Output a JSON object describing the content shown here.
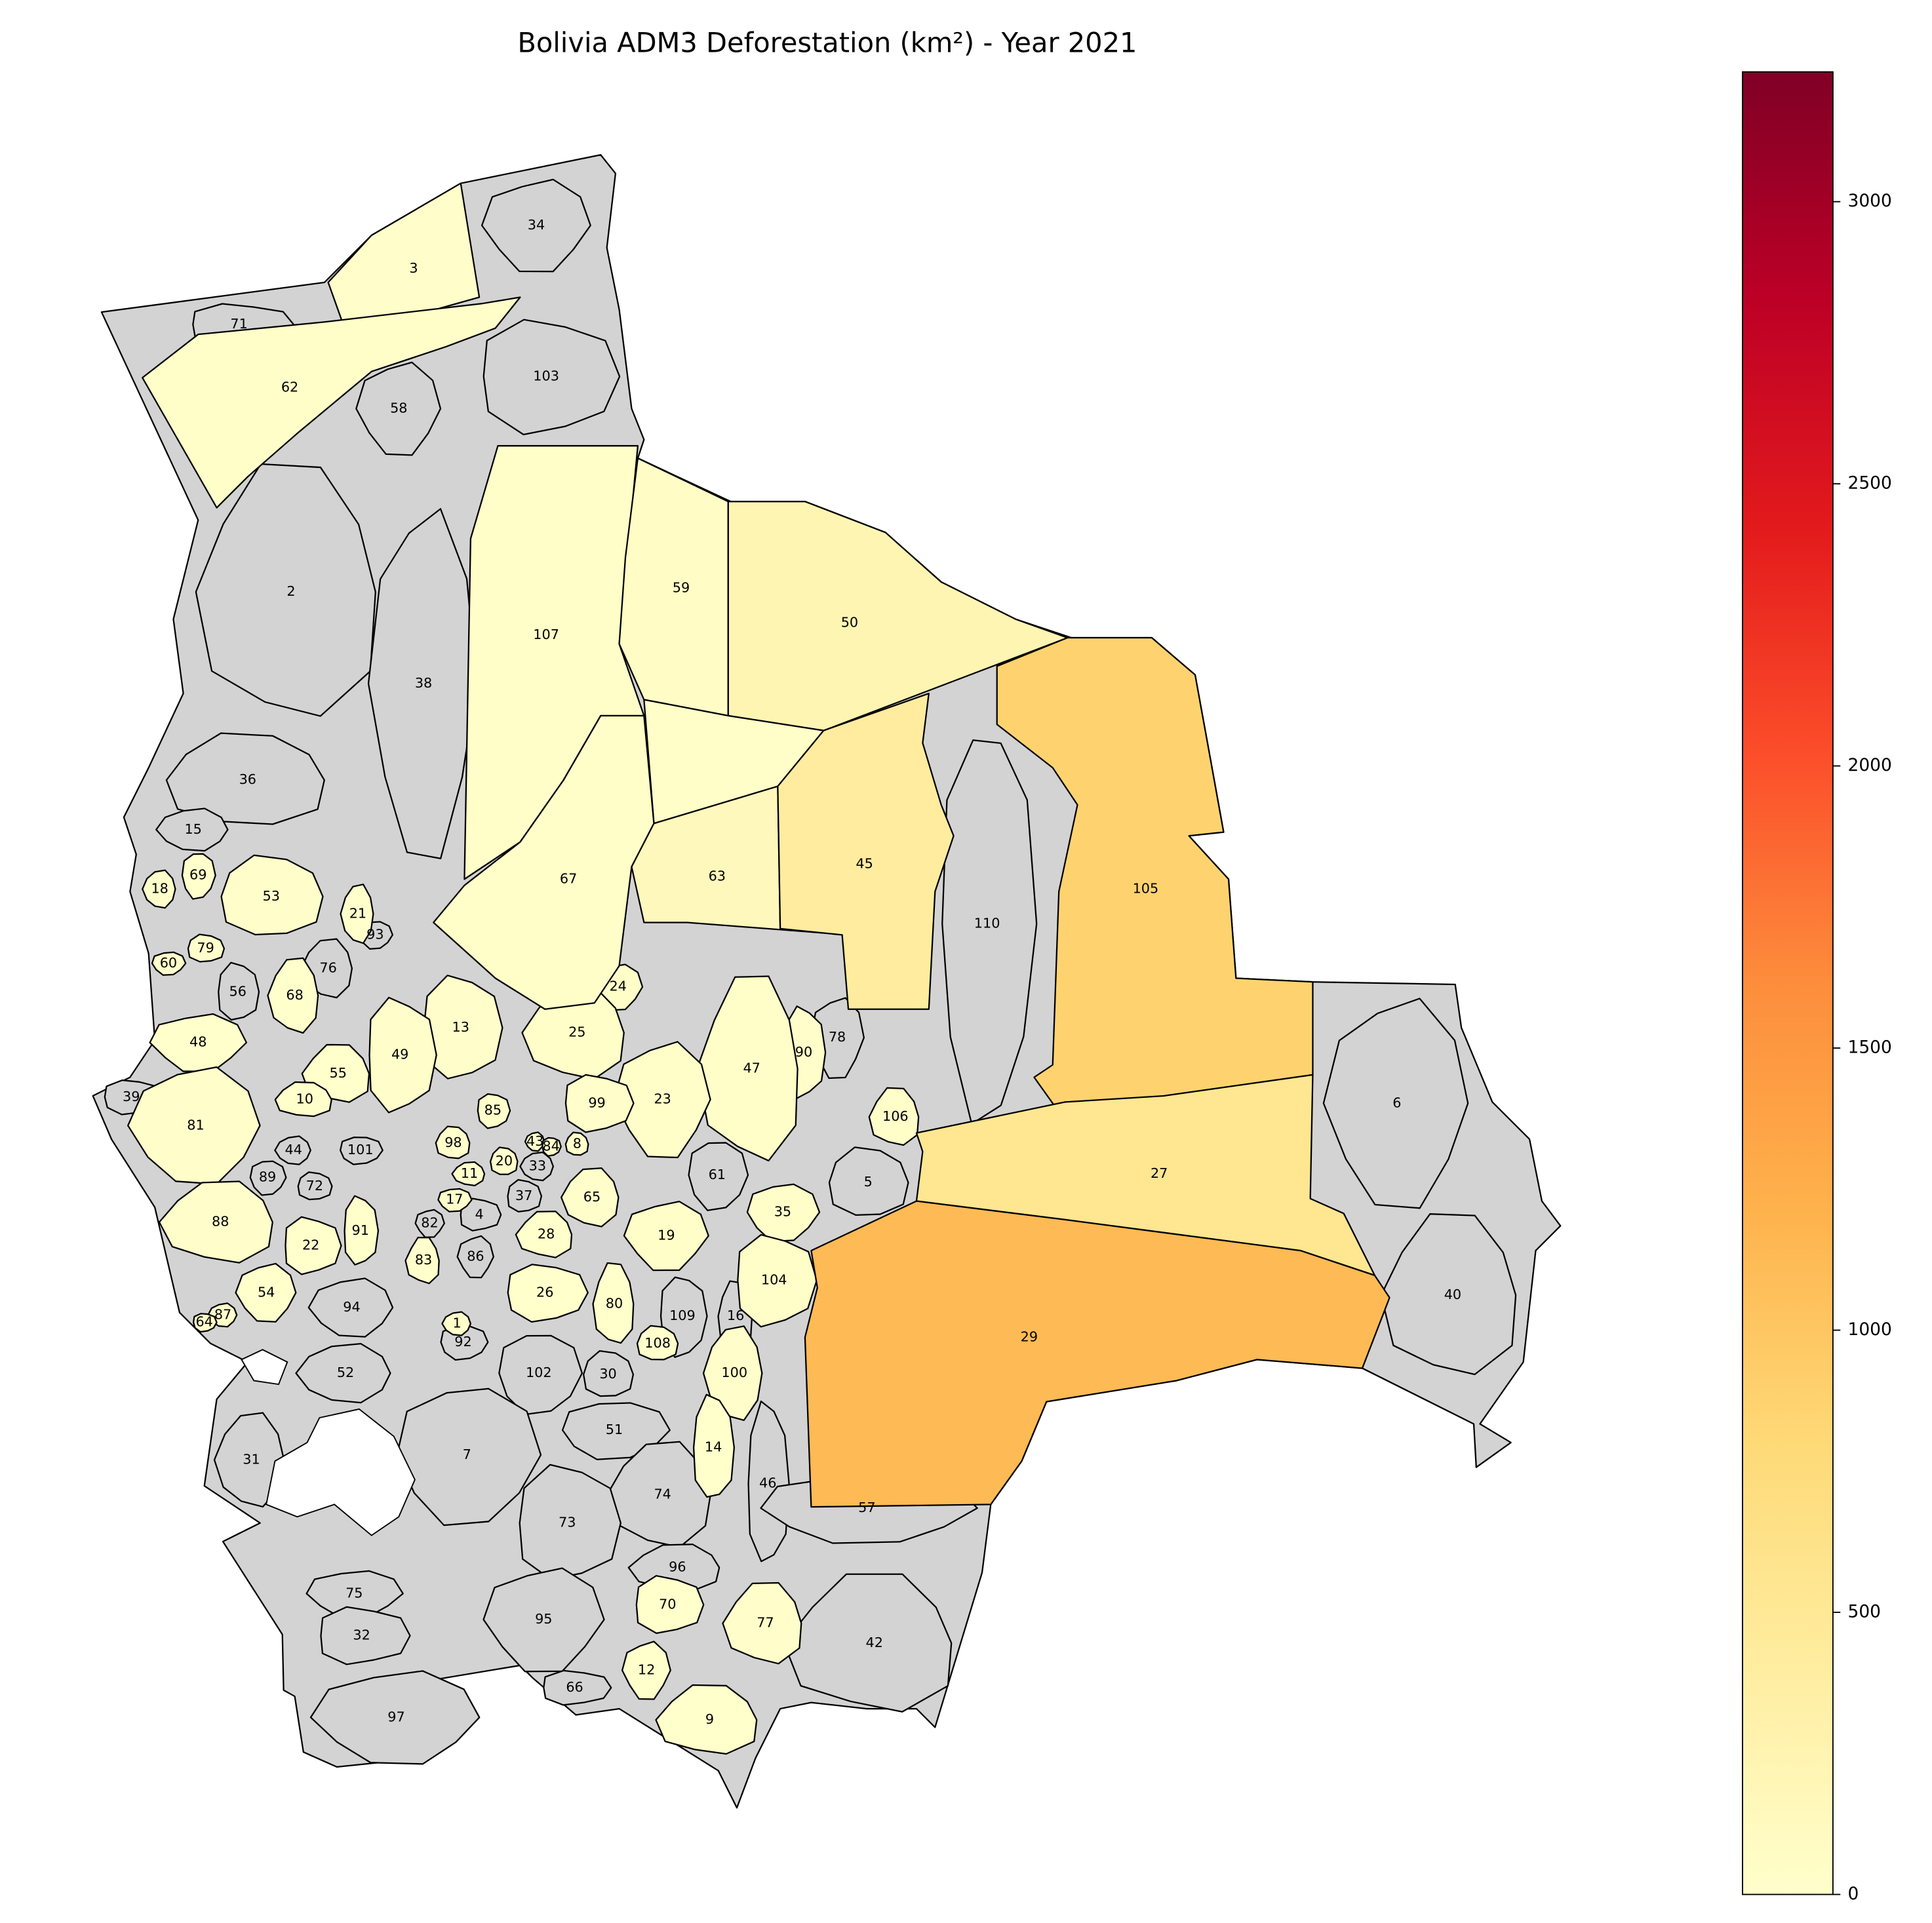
{
  "title": "Bolivia ADM3 Deforestation (km²) - Year 2021",
  "map": {
    "type": "choropleth",
    "colormap": "YlOrRd",
    "missing_color": "#d3d3d3",
    "regions": [
      {
        "label": "3",
        "value": 20
      },
      {
        "label": "34",
        "value": null
      },
      {
        "label": "71",
        "value": null
      },
      {
        "label": "62",
        "value": 30
      },
      {
        "label": "58",
        "value": null
      },
      {
        "label": "103",
        "value": null
      },
      {
        "label": "2",
        "value": null
      },
      {
        "label": "38",
        "value": null
      },
      {
        "label": "107",
        "value": 40
      },
      {
        "label": "59",
        "value": 60
      },
      {
        "label": "50",
        "value": 230
      },
      {
        "label": null,
        "value": 30
      },
      {
        "label": "36",
        "value": null
      },
      {
        "label": "15",
        "value": null
      },
      {
        "label": "67",
        "value": 40
      },
      {
        "label": "63",
        "value": 150
      },
      {
        "label": "45",
        "value": 420
      },
      {
        "label": "110",
        "value": null
      },
      {
        "label": "105",
        "value": 870
      },
      {
        "label": "18",
        "value": 10
      },
      {
        "label": "69",
        "value": 10
      },
      {
        "label": "53",
        "value": 20
      },
      {
        "label": "21",
        "value": 10
      },
      {
        "label": "93",
        "value": null
      },
      {
        "label": "79",
        "value": 5
      },
      {
        "label": "76",
        "value": null
      },
      {
        "label": "60",
        "value": 5
      },
      {
        "label": "56",
        "value": null
      },
      {
        "label": "68",
        "value": 10
      },
      {
        "label": "24",
        "value": 30
      },
      {
        "label": "13",
        "value": 20
      },
      {
        "label": "25",
        "value": 30
      },
      {
        "label": "78",
        "value": null
      },
      {
        "label": "90",
        "value": 20
      },
      {
        "label": "47",
        "value": 30
      },
      {
        "label": "48",
        "value": 10
      },
      {
        "label": "49",
        "value": 20
      },
      {
        "label": "55",
        "value": 10
      },
      {
        "label": "23",
        "value": 40
      },
      {
        "label": "99",
        "value": 20
      },
      {
        "label": "106",
        "value": 40
      },
      {
        "label": "6",
        "value": null
      },
      {
        "label": "39",
        "value": null
      },
      {
        "label": "10",
        "value": 10
      },
      {
        "label": "81",
        "value": 20
      },
      {
        "label": "85",
        "value": 10
      },
      {
        "label": "98",
        "value": 10
      },
      {
        "label": "43",
        "value": 10
      },
      {
        "label": "84",
        "value": 5
      },
      {
        "label": "8",
        "value": 10
      },
      {
        "label": "44",
        "value": null
      },
      {
        "label": "101",
        "value": null
      },
      {
        "label": "20",
        "value": 10
      },
      {
        "label": "33",
        "value": null
      },
      {
        "label": "61",
        "value": null
      },
      {
        "label": "5",
        "value": null
      },
      {
        "label": "27",
        "value": 550
      },
      {
        "label": "89",
        "value": null
      },
      {
        "label": "72",
        "value": null
      },
      {
        "label": "11",
        "value": 10
      },
      {
        "label": "17",
        "value": 10
      },
      {
        "label": "37",
        "value": null
      },
      {
        "label": "65",
        "value": 20
      },
      {
        "label": "35",
        "value": 30
      },
      {
        "label": "91",
        "value": 10
      },
      {
        "label": "88",
        "value": 20
      },
      {
        "label": "82",
        "value": null
      },
      {
        "label": "4",
        "value": null
      },
      {
        "label": "28",
        "value": 10
      },
      {
        "label": "19",
        "value": 30
      },
      {
        "label": "22",
        "value": 10
      },
      {
        "label": "83",
        "value": 10
      },
      {
        "label": "86",
        "value": null
      },
      {
        "label": "104",
        "value": 40
      },
      {
        "label": "40",
        "value": null
      },
      {
        "label": "54",
        "value": 10
      },
      {
        "label": "26",
        "value": 10
      },
      {
        "label": "80",
        "value": 10
      },
      {
        "label": "94",
        "value": null
      },
      {
        "label": "109",
        "value": null
      },
      {
        "label": "16",
        "value": null
      },
      {
        "label": "87",
        "value": 5
      },
      {
        "label": "64",
        "value": 5
      },
      {
        "label": "29",
        "value": 1130
      },
      {
        "label": "1",
        "value": 5
      },
      {
        "label": "92",
        "value": null
      },
      {
        "label": "108",
        "value": 10
      },
      {
        "label": "52",
        "value": null
      },
      {
        "label": "102",
        "value": null
      },
      {
        "label": "30",
        "value": null
      },
      {
        "label": "100",
        "value": 20
      },
      {
        "label": "51",
        "value": null
      },
      {
        "label": "14",
        "value": 10
      },
      {
        "label": "31",
        "value": null
      },
      {
        "label": "7",
        "value": null
      },
      {
        "label": "46",
        "value": null
      },
      {
        "label": "74",
        "value": null
      },
      {
        "label": "57",
        "value": null
      },
      {
        "label": "73",
        "value": null
      },
      {
        "label": "96",
        "value": null
      },
      {
        "label": "75",
        "value": null
      },
      {
        "label": "70",
        "value": 10
      },
      {
        "label": "77",
        "value": 20
      },
      {
        "label": "95",
        "value": null
      },
      {
        "label": "32",
        "value": null
      },
      {
        "label": "42",
        "value": null
      },
      {
        "label": "12",
        "value": 10
      },
      {
        "label": "66",
        "value": null
      },
      {
        "label": "9",
        "value": 10
      },
      {
        "label": "97",
        "value": null
      }
    ],
    "colorbar": {
      "lim": [
        0,
        3230
      ],
      "ticks": [
        0,
        500,
        1000,
        1500,
        2000,
        2500,
        3000
      ]
    }
  }
}
